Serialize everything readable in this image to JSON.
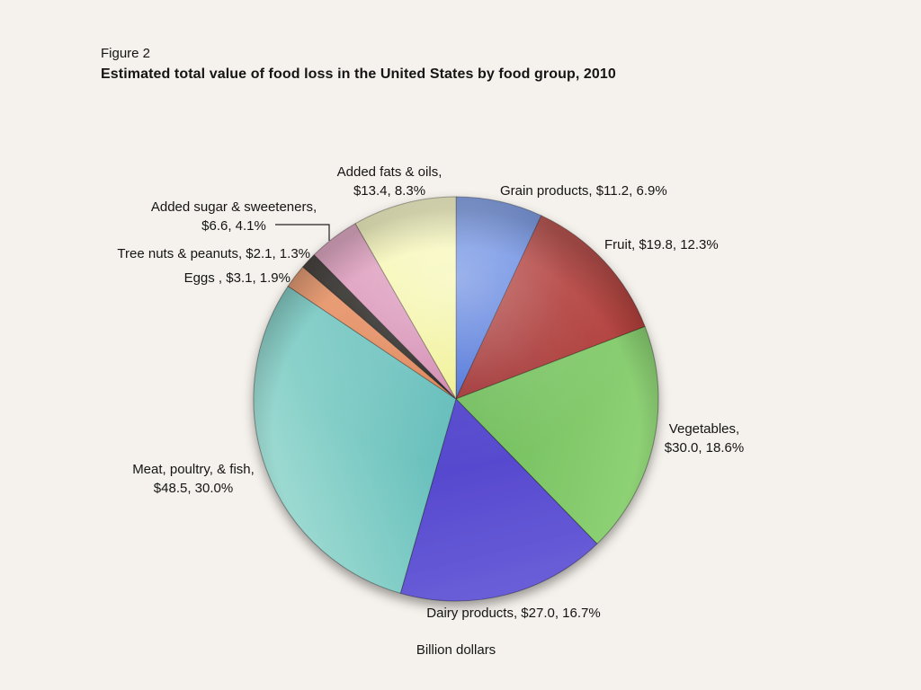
{
  "chart_data": {
    "type": "pie",
    "figure_label": "Figure 2",
    "title": "Estimated total value of food loss in the United States by food group, 2010",
    "unit_label": "Billion dollars",
    "legend_position": "none",
    "background_color": "#f5f1ec",
    "text_color": "#151515",
    "slices": [
      {
        "key": "grain-products",
        "label": "Grain products",
        "value": 11.2,
        "pct": 6.9,
        "color": "#4a6fd6",
        "color_light": "#6e92e6",
        "display": [
          "Grain products, $11.2, 6.9%"
        ]
      },
      {
        "key": "fruit",
        "label": "Fruit",
        "value": 19.8,
        "pct": 12.3,
        "color": "#9e3032",
        "color_light": "#b8443f",
        "display": [
          "Fruit, $19.8, 12.3%"
        ]
      },
      {
        "key": "vegetables",
        "label": "Vegetables",
        "value": 30.0,
        "pct": 18.6,
        "color": "#6ebb59",
        "color_light": "#90d377",
        "display": [
          "Vegetables,",
          "$30.0, 18.6%"
        ]
      },
      {
        "key": "dairy-products",
        "label": "Dairy products",
        "value": 27.0,
        "pct": 16.7,
        "color": "#4d3fca",
        "color_light": "#6a5ed8",
        "display": [
          "Dairy products, $27.0, 16.7%"
        ]
      },
      {
        "key": "meat-poultry-fish",
        "label": "Meat, poultry, & fish",
        "value": 48.5,
        "pct": 30.0,
        "color": "#5bb9b7",
        "color_light": "#9edbd2",
        "display": [
          "Meat, poultry, & fish,",
          "$48.5, 30.0%"
        ]
      },
      {
        "key": "eggs",
        "label": "Eggs",
        "value": 3.1,
        "pct": 1.9,
        "color": "#dd7848",
        "color_light": "#e99c72",
        "display": [
          "Eggs , $3.1, 1.9%"
        ]
      },
      {
        "key": "tree-nuts-peanuts",
        "label": "Tree nuts & peanuts",
        "value": 2.1,
        "pct": 1.3,
        "color": "#161412",
        "color_light": "#3d3a36",
        "display": [
          "Tree nuts & peanuts, $2.1, 1.3%"
        ]
      },
      {
        "key": "added-sugar-sweeteners",
        "label": "Added sugar & sweeteners",
        "value": 6.6,
        "pct": 4.1,
        "color": "#cf82ab",
        "color_light": "#e3a6c4",
        "display": [
          "Added sugar & sweeteners,",
          "$6.6, 4.1%"
        ]
      },
      {
        "key": "added-fats-oils",
        "label": "Added fats & oils",
        "value": 13.4,
        "pct": 8.3,
        "color": "#eff08d",
        "color_light": "#f9f9c2",
        "display": [
          "Added fats & oils,",
          "$13.4, 8.3%"
        ]
      }
    ]
  }
}
